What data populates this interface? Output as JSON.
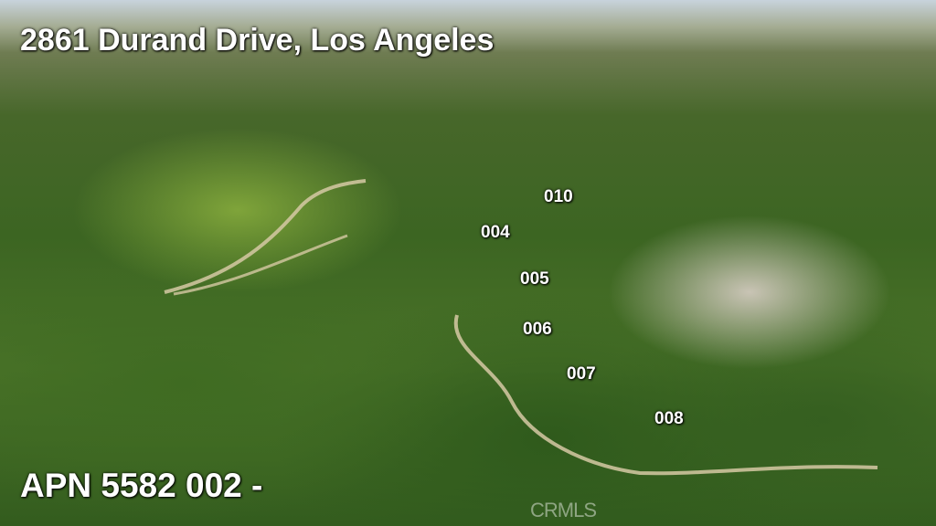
{
  "title": "2861 Durand Drive, Los Angeles",
  "apn": "APN 5582 002 -",
  "lots": [
    "010",
    "004",
    "005",
    "006",
    "007",
    "008"
  ],
  "watermark": "CRMLS"
}
